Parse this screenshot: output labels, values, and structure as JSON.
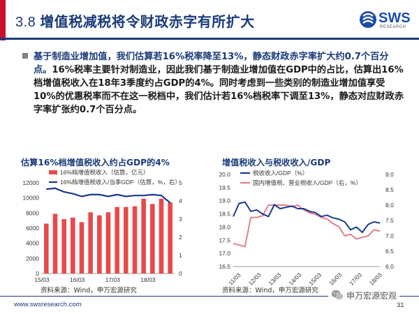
{
  "header": {
    "section_number": "3.8",
    "title": "增值税减税将令财政赤字有所扩大",
    "logo_text": "SWS",
    "logo_sub": "RESEARCH"
  },
  "bullet": {
    "lead": "基于制造业增加值，我们估算若16%税率降至13%，静态财政赤字率扩大约0.7个百分点。",
    "body": "16%税率主要针对制造业，因此我们基于制造业增加值在GDP中的占比，估算出16%档增值税收入在18年3季度约占GDP的4%。同时考虑到一些类别的制造业增加值享受10%的优惠税率而不在这一税档中，我们估计若16%档税率下调至13%，静态对应财政赤字率扩张约0.7个百分点。"
  },
  "left_chart_title": "估算16%档增值税收入约占GDP的4%",
  "right_chart_title": "增值税收入与税收收入/GDP",
  "sources": {
    "left": "资料来源：Wind，申万宏源研究",
    "right": "资料来源：Wind，申万宏源研究"
  },
  "footer": {
    "url": "www.swsresearch.com",
    "wechat": "申万宏源宏观",
    "page": "31"
  },
  "colors": {
    "navy": "#1a3a7a",
    "bar_red": "#e84a4a",
    "line_pink": "#e0808a",
    "line_navy": "#1a3a8a",
    "brand_red": "#c8102e"
  },
  "chart_data": [
    {
      "type": "bar",
      "title": "估算16%档增值税收入约占GDP的4%",
      "x_tick_labels": [
        "15/03",
        "16/03",
        "17/03",
        "18/03"
      ],
      "categories": [
        "15Q1",
        "15Q2",
        "15Q3",
        "15Q4",
        "16Q1",
        "16Q2",
        "16Q3",
        "16Q4",
        "17Q1",
        "17Q2",
        "17Q3",
        "17Q4",
        "18Q1",
        "18Q2",
        "18Q3"
      ],
      "series": [
        {
          "name": "16%档增值税收入（估算，亿元）",
          "axis": "left",
          "type": "bar",
          "values": [
            6600,
            7900,
            7200,
            7400,
            6800,
            8100,
            7700,
            8100,
            8800,
            8800,
            8900,
            9900,
            9200,
            9900,
            9400
          ]
        },
        {
          "name": "16%档增值税收入/当季GDP（估算，%，右）",
          "axis": "right",
          "type": "line",
          "values": [
            4.65,
            4.7,
            4.5,
            4.4,
            4.25,
            4.35,
            4.35,
            4.25,
            4.35,
            4.25,
            4.3,
            4.3,
            4.35,
            4.3,
            3.9
          ]
        }
      ],
      "ylim_left": [
        0,
        12000
      ],
      "yticks_left": [
        0,
        2000,
        4000,
        6000,
        8000,
        10000,
        12000
      ],
      "ylim_right": [
        0,
        5
      ],
      "yticks_right": [
        0,
        1,
        2,
        3,
        4,
        5
      ],
      "legend": "top-left"
    },
    {
      "type": "line",
      "title": "增值税收入与税收收入/GDP",
      "x_tick_labels": [
        "11/03",
        "12/03",
        "13/03",
        "14/03",
        "15/03",
        "16/03",
        "17/03",
        "18/03"
      ],
      "series": [
        {
          "name": "税收收入/GDP（%）",
          "axis": "left",
          "values": [
            18.4,
            18.9,
            18.95,
            18.6,
            18.65,
            18.5,
            18.4,
            18.85,
            18.7,
            18.75,
            18.8,
            18.7,
            18.7,
            18.6,
            18.55,
            18.4,
            18.45,
            18.35,
            18.3,
            18.2,
            17.9,
            18.0,
            17.8,
            18.1,
            18.2,
            18.15
          ]
        },
        {
          "name": "国内增值税、营业税收入/GDP（右，%）",
          "axis": "right",
          "values": [
            6.75,
            6.7,
            6.65,
            7.6,
            7.6,
            7.65,
            8.0,
            8.0,
            8.0,
            8.0,
            7.95,
            8.0,
            7.85,
            7.75,
            7.7,
            7.6,
            7.55,
            7.4,
            7.3,
            7.0,
            7.05,
            6.9,
            6.95,
            7.0,
            7.2,
            7.15
          ]
        }
      ],
      "ylim_left": [
        16.5,
        20.0
      ],
      "yticks_left": [
        16.5,
        17.0,
        17.5,
        18.0,
        18.5,
        19.0,
        19.5,
        20.0
      ],
      "ylim_right": [
        6.0,
        9.0
      ],
      "yticks_right": [
        6.0,
        6.5,
        7.0,
        7.5,
        8.0,
        8.5,
        9.0
      ],
      "legend": "top-left"
    }
  ]
}
